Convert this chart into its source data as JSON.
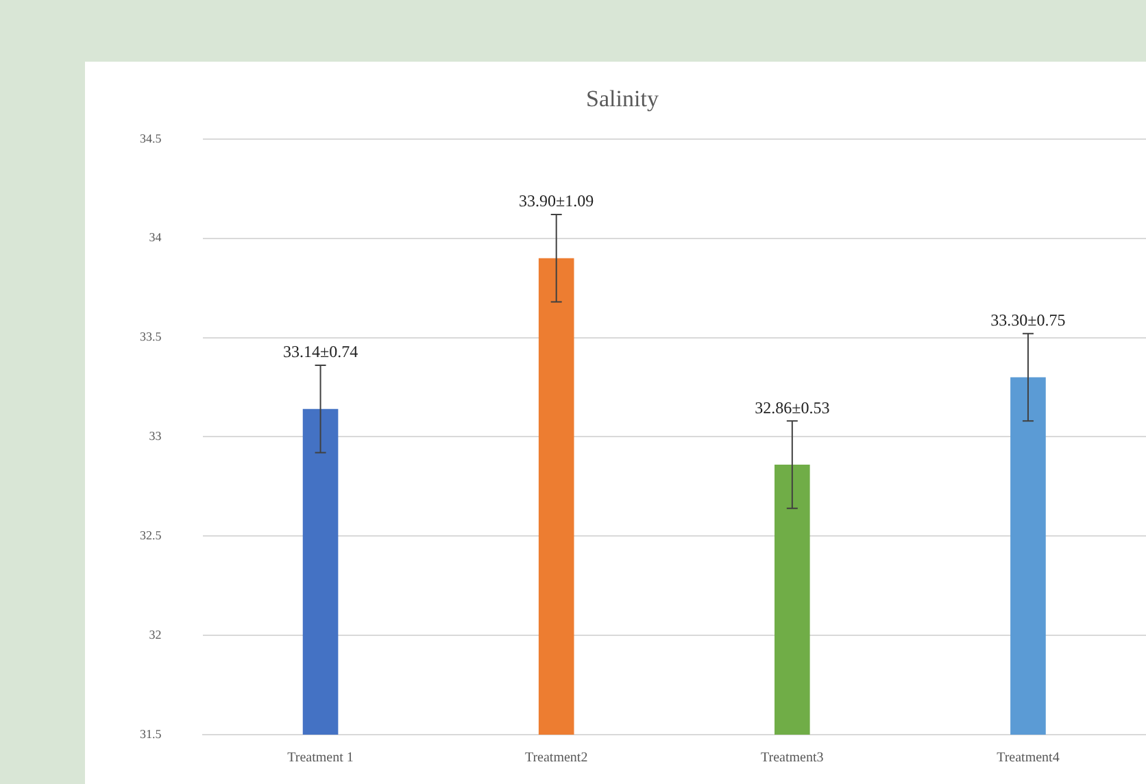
{
  "chart_data": {
    "type": "bar",
    "title": "Salinity",
    "categories": [
      "Treatment 1",
      "Treatment2",
      "Treatment3",
      "Treatment4"
    ],
    "values": [
      33.14,
      33.9,
      32.86,
      33.3
    ],
    "colors": [
      "#4472c4",
      "#ed7d31",
      "#70ad47",
      "#5b9bd5"
    ],
    "errors": [
      0.22,
      0.22,
      0.22,
      0.22
    ],
    "value_labels": [
      "33.14±0.74",
      "33.90±1.09",
      "32.86±0.53",
      "33.30±0.75"
    ],
    "ylim": [
      31.5,
      34.5
    ],
    "yticks": [
      31.5,
      32,
      32.5,
      33,
      33.5,
      34,
      34.5
    ],
    "grid": "y",
    "legend": false
  }
}
